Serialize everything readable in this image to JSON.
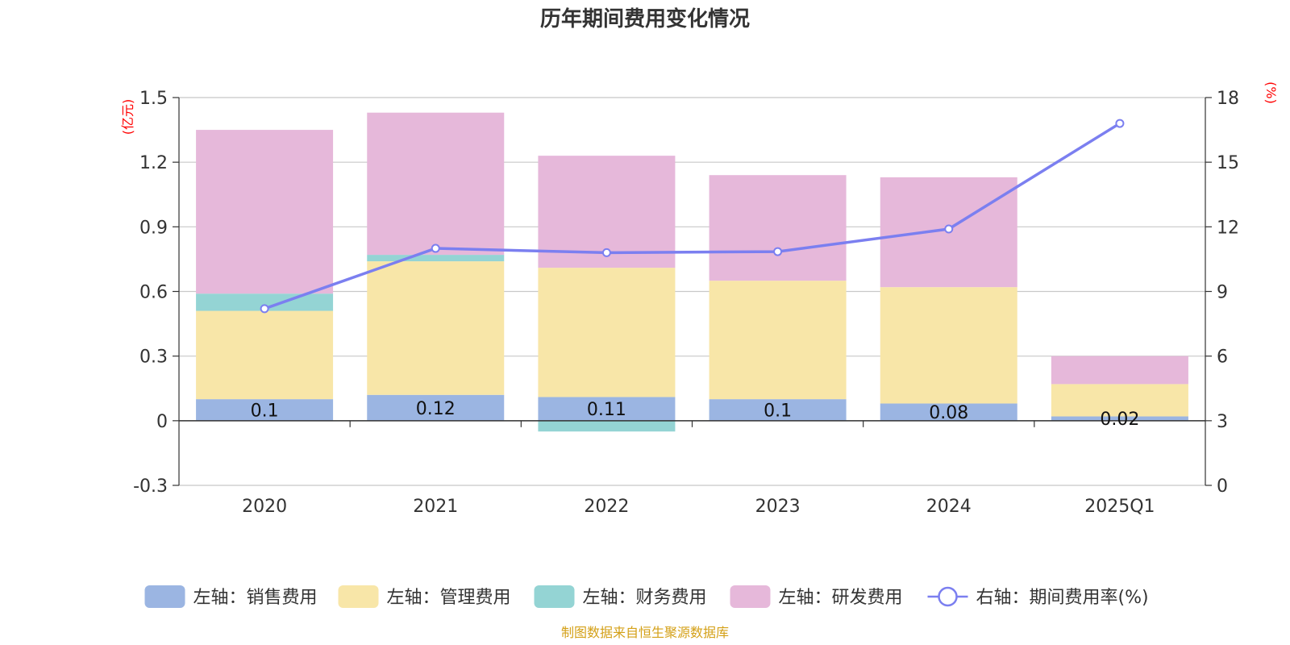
{
  "chart_data": {
    "type": "bar",
    "stacked": true,
    "title": "历年期间费用变化情况",
    "categories": [
      "2020",
      "2021",
      "2022",
      "2023",
      "2024",
      "2025Q1"
    ],
    "left_axis": {
      "unit": "(亿元)",
      "ylim": [
        -0.3,
        1.5
      ],
      "ticks": [
        "-0.3",
        "0",
        "0.3",
        "0.6",
        "0.9",
        "1.2",
        "1.5"
      ]
    },
    "right_axis": {
      "unit": "(%)",
      "ylim": [
        0,
        18
      ],
      "ticks": [
        "0",
        "3",
        "6",
        "9",
        "12",
        "15",
        "18"
      ]
    },
    "series": [
      {
        "name": "左轴：销售费用",
        "axis": "left",
        "color": "#9bb5e2",
        "values": [
          0.1,
          0.12,
          0.11,
          0.1,
          0.08,
          0.02
        ],
        "labels": [
          "0.1",
          "0.12",
          "0.11",
          "0.1",
          "0.08",
          "0.02"
        ]
      },
      {
        "name": "左轴：管理费用",
        "axis": "left",
        "color": "#f8e6a8",
        "values": [
          0.41,
          0.62,
          0.6,
          0.55,
          0.54,
          0.15
        ]
      },
      {
        "name": "左轴：财务费用",
        "axis": "left",
        "color": "#94d4d4",
        "values": [
          0.08,
          0.03,
          -0.05,
          0.0,
          0.0,
          0.0
        ]
      },
      {
        "name": "左轴：研发费用",
        "axis": "left",
        "color": "#e6b8da",
        "values": [
          0.76,
          0.66,
          0.52,
          0.49,
          0.51,
          0.13
        ]
      },
      {
        "name": "右轴：期间费用率(%)",
        "axis": "right",
        "type": "line",
        "color": "#7b7ff0",
        "values": [
          8.2,
          11.0,
          10.8,
          10.85,
          11.9,
          16.8
        ]
      }
    ]
  },
  "footer": {
    "source": "制图数据来自恒生聚源数据库"
  }
}
